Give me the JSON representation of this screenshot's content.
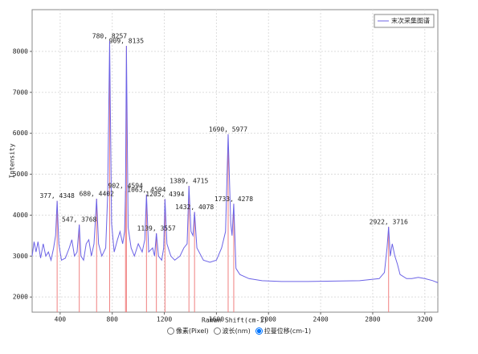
{
  "chart_data": {
    "type": "line",
    "xlabel": "Raman Shift(cm-1)",
    "ylabel": "Intensity",
    "xlim": [
      185,
      3300
    ],
    "xticks": [
      400,
      800,
      1200,
      1600,
      2000,
      2400,
      2800,
      3200
    ],
    "ylim": [
      1630,
      9020
    ],
    "yticks": [
      2000,
      3000,
      4000,
      5000,
      6000,
      7000,
      8000
    ],
    "grid": true,
    "legend": "upper right",
    "series": [
      {
        "name": "末次采集图谱",
        "color": "#6c63e6",
        "x": [
          185,
          200,
          215,
          230,
          250,
          270,
          290,
          310,
          330,
          350,
          365,
          377,
          390,
          410,
          440,
          470,
          490,
          510,
          530,
          547,
          560,
          580,
          600,
          620,
          640,
          660,
          680,
          695,
          720,
          750,
          765,
          780,
          795,
          815,
          840,
          860,
          880,
          895,
          902,
          909,
          922,
          945,
          970,
          1000,
          1030,
          1050,
          1063,
          1080,
          1110,
          1125,
          1139,
          1155,
          1180,
          1195,
          1205,
          1220,
          1250,
          1280,
          1320,
          1350,
          1375,
          1389,
          1405,
          1420,
          1432,
          1450,
          1500,
          1550,
          1600,
          1640,
          1670,
          1690,
          1710,
          1720,
          1733,
          1750,
          1780,
          1850,
          1950,
          2100,
          2300,
          2500,
          2700,
          2850,
          2890,
          2910,
          2922,
          2935,
          2950,
          2970,
          2990,
          3010,
          3060,
          3100,
          3150,
          3200,
          3260,
          3300
        ],
        "values": [
          3000,
          3350,
          3100,
          3350,
          2950,
          3300,
          3000,
          3100,
          2900,
          3200,
          3500,
          4348,
          3300,
          2900,
          2950,
          3200,
          3400,
          3000,
          3100,
          3768,
          3000,
          2900,
          3300,
          3400,
          3000,
          3300,
          4402,
          3300,
          3000,
          3200,
          4500,
          8257,
          3800,
          3100,
          3400,
          3600,
          3300,
          3600,
          4594,
          8135,
          3700,
          3200,
          3000,
          3300,
          3100,
          3400,
          4504,
          3100,
          3200,
          3000,
          3557,
          3000,
          2900,
          3200,
          4394,
          3300,
          3000,
          2900,
          3000,
          3200,
          3300,
          4715,
          3600,
          3500,
          4078,
          3200,
          2900,
          2850,
          2900,
          3200,
          3600,
          5977,
          3800,
          3500,
          4278,
          2700,
          2550,
          2450,
          2400,
          2380,
          2380,
          2390,
          2400,
          2450,
          2600,
          3200,
          3716,
          3000,
          3300,
          3000,
          2800,
          2550,
          2450,
          2450,
          2480,
          2450,
          2400,
          2350
        ]
      }
    ],
    "peaks": {
      "color": "#f08080",
      "x": [
        377,
        547,
        680,
        780,
        902,
        909,
        1063,
        1139,
        1205,
        1389,
        1432,
        1690,
        1733,
        2922
      ],
      "values": [
        4348,
        3768,
        4402,
        8257,
        4594,
        8135,
        4504,
        3557,
        4394,
        4715,
        4078,
        5977,
        4278,
        3716
      ],
      "value_labels": [
        "377, 4348",
        "547, 3768",
        "680, 4402",
        "780, 8257",
        "902, 4594",
        "909, 8135",
        "1063, 4504",
        "1139, 3557",
        "1205, 4394",
        "1389, 4715",
        "1432, 4078",
        "1690, 5977",
        "1733, 4278",
        "2922, 3716"
      ]
    },
    "modes": [
      "像素(Pixel)",
      "波长(nm)",
      "拉曼位移(cm-1)"
    ],
    "selected_mode": 2
  }
}
